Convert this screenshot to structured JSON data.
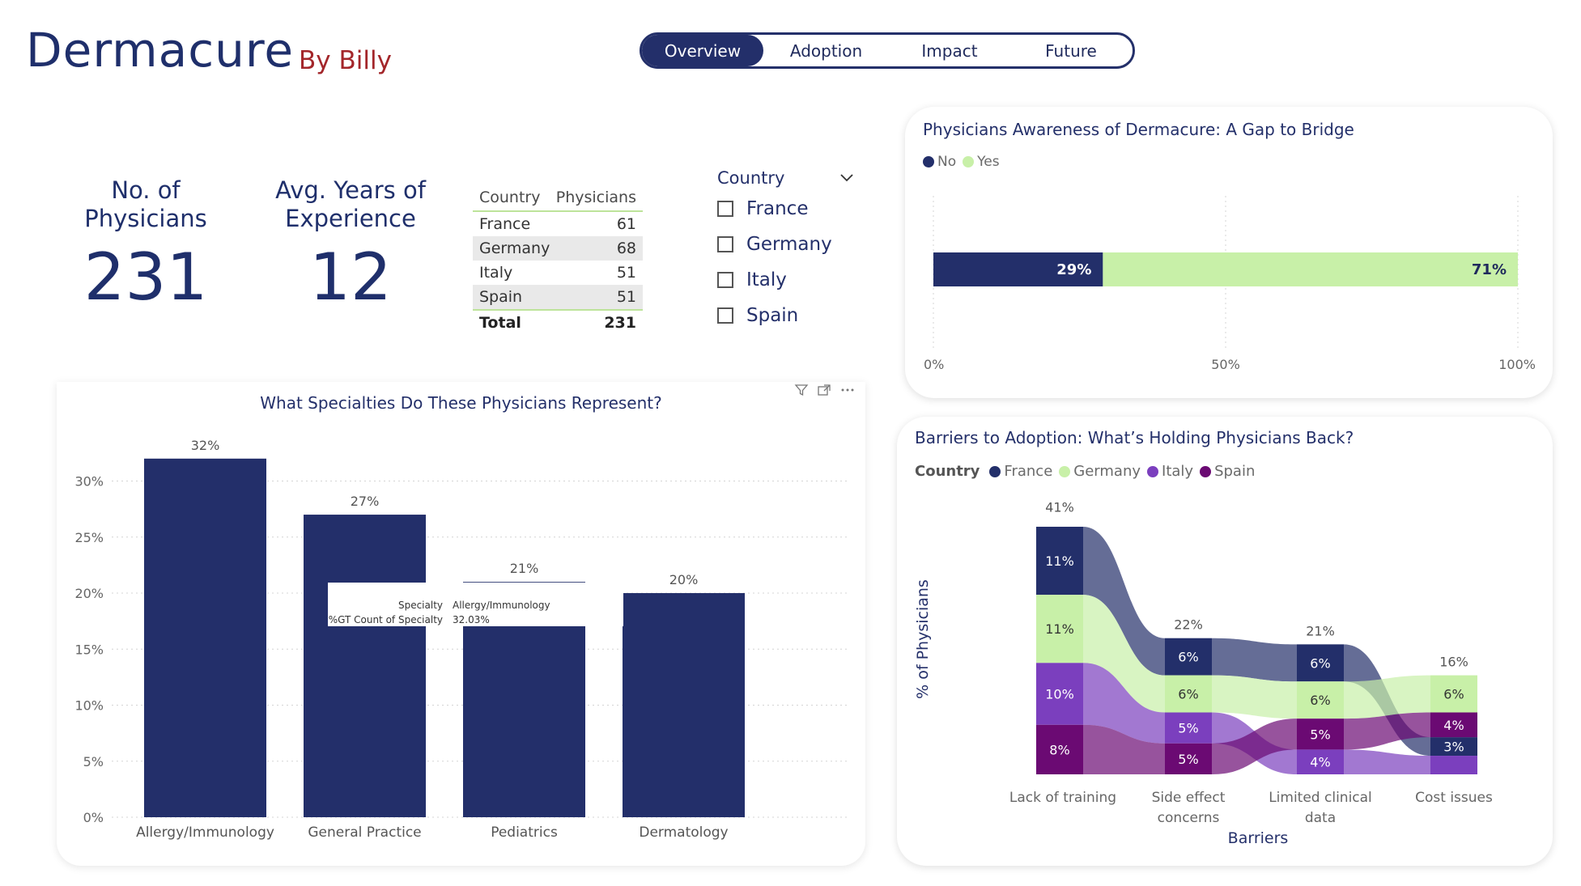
{
  "header": {
    "title": "Dermacure",
    "byline": "By Billy"
  },
  "nav": {
    "tabs": [
      "Overview",
      "Adoption",
      "Impact",
      "Future"
    ],
    "active": "Overview"
  },
  "kpis": {
    "physicians": {
      "label_line1": "No. of",
      "label_line2": "Physicians",
      "value": "231"
    },
    "experience": {
      "label_line1": "Avg. Years of",
      "label_line2": "Experience",
      "value": "12"
    }
  },
  "country_table": {
    "headers": [
      "Country",
      "Physicians"
    ],
    "rows": [
      {
        "country": "France",
        "physicians": "61"
      },
      {
        "country": "Germany",
        "physicians": "68"
      },
      {
        "country": "Italy",
        "physicians": "51"
      },
      {
        "country": "Spain",
        "physicians": "51"
      }
    ],
    "total_label": "Total",
    "total_value": "231"
  },
  "slicer": {
    "title": "Country",
    "options": [
      "France",
      "Germany",
      "Italy",
      "Spain"
    ]
  },
  "colors": {
    "navy": "#232f6a",
    "light_green": "#c8f0a8",
    "purple": "#7b3fbe",
    "dark_purple": "#6b0a73",
    "title_red": "#a3262a"
  },
  "chart_data": [
    {
      "type": "bar",
      "title": "What Specialties Do These Physicians Represent?",
      "categories": [
        "Allergy/Immunology",
        "General Practice",
        "Pediatrics",
        "Dermatology"
      ],
      "values": [
        32,
        27,
        21,
        20
      ],
      "data_labels": [
        "32%",
        "27%",
        "21%",
        "20%"
      ],
      "ylim": [
        0,
        35
      ],
      "yticks": [
        "0%",
        "5%",
        "10%",
        "15%",
        "20%",
        "25%",
        "30%"
      ],
      "xlabel": "",
      "ylabel": "",
      "tooltip": {
        "label1": "Specialty",
        "value1": "Allergy/Immunology",
        "label2": "%GT Count of Specialty",
        "value2": "32.03%"
      }
    },
    {
      "type": "bar",
      "orientation": "horizontal-stacked-100",
      "title": "Physicians Awareness of Dermacure: A Gap to Bridge",
      "legend": [
        "No",
        "Yes"
      ],
      "series": [
        {
          "name": "No",
          "values": [
            29
          ]
        },
        {
          "name": "Yes",
          "values": [
            71
          ]
        }
      ],
      "data_labels": [
        "29%",
        "71%"
      ],
      "xticks": [
        "0%",
        "50%",
        "100%"
      ]
    },
    {
      "type": "area",
      "subtype": "ribbon",
      "title": "Barriers to Adoption: What’s Holding Physicians Back?",
      "legend_title": "Country",
      "legend": [
        "France",
        "Germany",
        "Italy",
        "Spain"
      ],
      "categories": [
        "Lack of training",
        "Side effect concerns",
        "Limited clinical data",
        "Cost issues"
      ],
      "category_label_lines": [
        [
          "Lack of training"
        ],
        [
          "Side effect",
          "concerns"
        ],
        [
          "Limited clinical",
          "data"
        ],
        [
          "Cost issues"
        ]
      ],
      "totals": [
        41,
        22,
        21,
        16
      ],
      "total_labels": [
        "41%",
        "22%",
        "21%",
        "16%"
      ],
      "series": [
        {
          "name": "France",
          "values": [
            11,
            6,
            6,
            3
          ]
        },
        {
          "name": "Germany",
          "values": [
            11,
            6,
            6,
            6
          ]
        },
        {
          "name": "Italy",
          "values": [
            10,
            5,
            4,
            3
          ]
        },
        {
          "name": "Spain",
          "values": [
            8,
            5,
            5,
            4
          ]
        }
      ],
      "segment_labels": [
        [
          "11%",
          "6%",
          "6%",
          "3%"
        ],
        [
          "11%",
          "6%",
          "6%",
          "6%"
        ],
        [
          "10%",
          "5%",
          "4%",
          ""
        ],
        [
          "8%",
          "5%",
          "5%",
          "4%"
        ]
      ],
      "xlabel": "Barriers",
      "ylabel": "% of Physicians"
    }
  ]
}
